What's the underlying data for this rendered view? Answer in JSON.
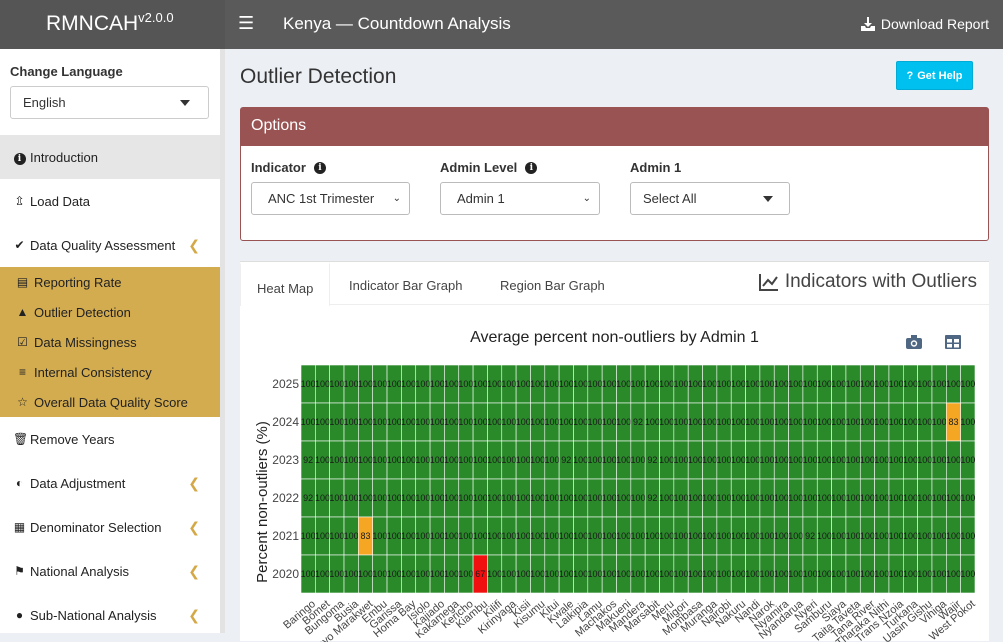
{
  "header": {
    "brand": "RMNCAH",
    "version": "v2.0.0",
    "menu_icon": "hamburger-icon",
    "title": "Kenya — Countdown Analysis",
    "download_label": "Download Report",
    "download_icon": "download-icon"
  },
  "sidebar": {
    "language_label": "Change Language",
    "language_value": "English",
    "items": [
      {
        "label": "Introduction",
        "icon": "info-icon"
      },
      {
        "label": "Load Data",
        "icon": "upload-icon"
      },
      {
        "label": "Data Quality Assessment",
        "icon": "check-circle-icon"
      },
      {
        "label": "Remove Years",
        "icon": "trash-icon"
      },
      {
        "label": "Data Adjustment",
        "icon": "half-circle-icon"
      },
      {
        "label": "Denominator Selection",
        "icon": "calculator-icon"
      },
      {
        "label": "National Analysis",
        "icon": "flag-icon"
      },
      {
        "label": "Sub-National Analysis",
        "icon": "globe-icon"
      }
    ],
    "sub_items": [
      {
        "label": "Reporting Rate",
        "icon": "bar-chart-icon"
      },
      {
        "label": "Outlier Detection",
        "icon": "warning-icon"
      },
      {
        "label": "Data Missingness",
        "icon": "checkbox-icon"
      },
      {
        "label": "Internal Consistency",
        "icon": "list-check-icon"
      },
      {
        "label": "Overall Data Quality Score",
        "icon": "star-icon"
      }
    ]
  },
  "main": {
    "page_title": "Outlier Detection",
    "help_label": "Get Help",
    "options": {
      "title": "Options",
      "indicator_label": "Indicator",
      "indicator_value": "ANC 1st Trimester",
      "admin_level_label": "Admin Level",
      "admin_level_value": "Admin 1",
      "admin1_label": "Admin 1",
      "admin1_value": "Select All"
    },
    "tabs": [
      "Heat Map",
      "Indicator Bar Graph",
      "Region Bar Graph"
    ],
    "panel_title": "Indicators with Outliers"
  },
  "colors": {
    "header_bg": "#5a5a5a",
    "options_header": "#9a5353",
    "active_subnav": "#d3ac50",
    "help_button": "#00c0ef",
    "cell_green": "#2a8a2a",
    "cell_orange": "#f5a623",
    "cell_red": "#f01010"
  },
  "chart_data": {
    "type": "heatmap",
    "title": "Average percent non-outliers by Admin 1",
    "ylabel": "Percent non-outliers (%)",
    "xlabel": "",
    "years": [
      2020,
      2021,
      2022,
      2023,
      2024,
      2025
    ],
    "regions": [
      "Baringo",
      "Bomet",
      "Bungoma",
      "Busia",
      "Elgeyo Marakwet",
      "Embu",
      "Garissa",
      "Homa Bay",
      "Isiolo",
      "Kajiado",
      "Kakamega",
      "Kericho",
      "Kiambu",
      "Kilifi",
      "Kirinyaga",
      "Kisii",
      "Kisumu",
      "Kitui",
      "Kwale",
      "Laikipia",
      "Lamu",
      "Machakos",
      "Makueni",
      "Mandera",
      "Marsabit",
      "Meru",
      "Migori",
      "Mombasa",
      "Muranga",
      "Nairobi",
      "Nakuru",
      "Nandi",
      "Narok",
      "Nyamira",
      "Nyandarua",
      "Nyeri",
      "Samburu",
      "Siaya",
      "Taita Taveta",
      "Tana River",
      "Tharaka Nithi",
      "Trans Nzoia",
      "Turkana",
      "Uasin Gishu",
      "Vihiga",
      "Wajir",
      "West Pokot"
    ],
    "values": {
      "2025": [
        100,
        100,
        100,
        100,
        100,
        100,
        100,
        100,
        100,
        100,
        100,
        100,
        100,
        100,
        100,
        100,
        100,
        100,
        100,
        100,
        100,
        100,
        100,
        100,
        100,
        100,
        100,
        100,
        100,
        100,
        100,
        100,
        100,
        100,
        100,
        100,
        100,
        100,
        100,
        100,
        100,
        100,
        100,
        100,
        100,
        100,
        100
      ],
      "2024": [
        100,
        100,
        100,
        100,
        100,
        100,
        100,
        100,
        100,
        100,
        100,
        100,
        100,
        100,
        100,
        100,
        100,
        100,
        100,
        100,
        100,
        100,
        100,
        92,
        100,
        100,
        100,
        100,
        100,
        100,
        100,
        100,
        100,
        100,
        100,
        100,
        100,
        100,
        100,
        100,
        100,
        100,
        100,
        100,
        100,
        83,
        100
      ],
      "2023": [
        92,
        100,
        100,
        100,
        100,
        100,
        100,
        100,
        100,
        100,
        100,
        100,
        100,
        100,
        100,
        100,
        100,
        100,
        92,
        100,
        100,
        100,
        100,
        100,
        92,
        100,
        100,
        100,
        100,
        100,
        100,
        100,
        100,
        100,
        100,
        100,
        100,
        100,
        100,
        100,
        100,
        100,
        100,
        100,
        100,
        100,
        100
      ],
      "2022": [
        92,
        100,
        100,
        100,
        100,
        100,
        100,
        100,
        100,
        100,
        100,
        100,
        100,
        100,
        100,
        100,
        100,
        100,
        100,
        100,
        100,
        100,
        100,
        100,
        92,
        100,
        100,
        100,
        100,
        100,
        100,
        100,
        100,
        100,
        100,
        100,
        100,
        100,
        100,
        100,
        100,
        100,
        100,
        100,
        100,
        100,
        100
      ],
      "2021": [
        100,
        100,
        100,
        100,
        83,
        100,
        100,
        100,
        100,
        100,
        100,
        100,
        100,
        100,
        100,
        100,
        100,
        100,
        100,
        100,
        100,
        100,
        100,
        100,
        100,
        100,
        100,
        100,
        100,
        100,
        100,
        100,
        100,
        100,
        100,
        92,
        100,
        100,
        100,
        100,
        100,
        100,
        100,
        100,
        100,
        100,
        100
      ],
      "2020": [
        100,
        100,
        100,
        100,
        100,
        100,
        100,
        100,
        100,
        100,
        100,
        100,
        67,
        100,
        100,
        100,
        100,
        100,
        100,
        100,
        100,
        100,
        100,
        100,
        100,
        100,
        100,
        100,
        100,
        100,
        100,
        100,
        100,
        100,
        100,
        100,
        100,
        100,
        100,
        100,
        100,
        100,
        100,
        100,
        100,
        100,
        100
      ]
    },
    "grid": true,
    "legend": "none"
  }
}
